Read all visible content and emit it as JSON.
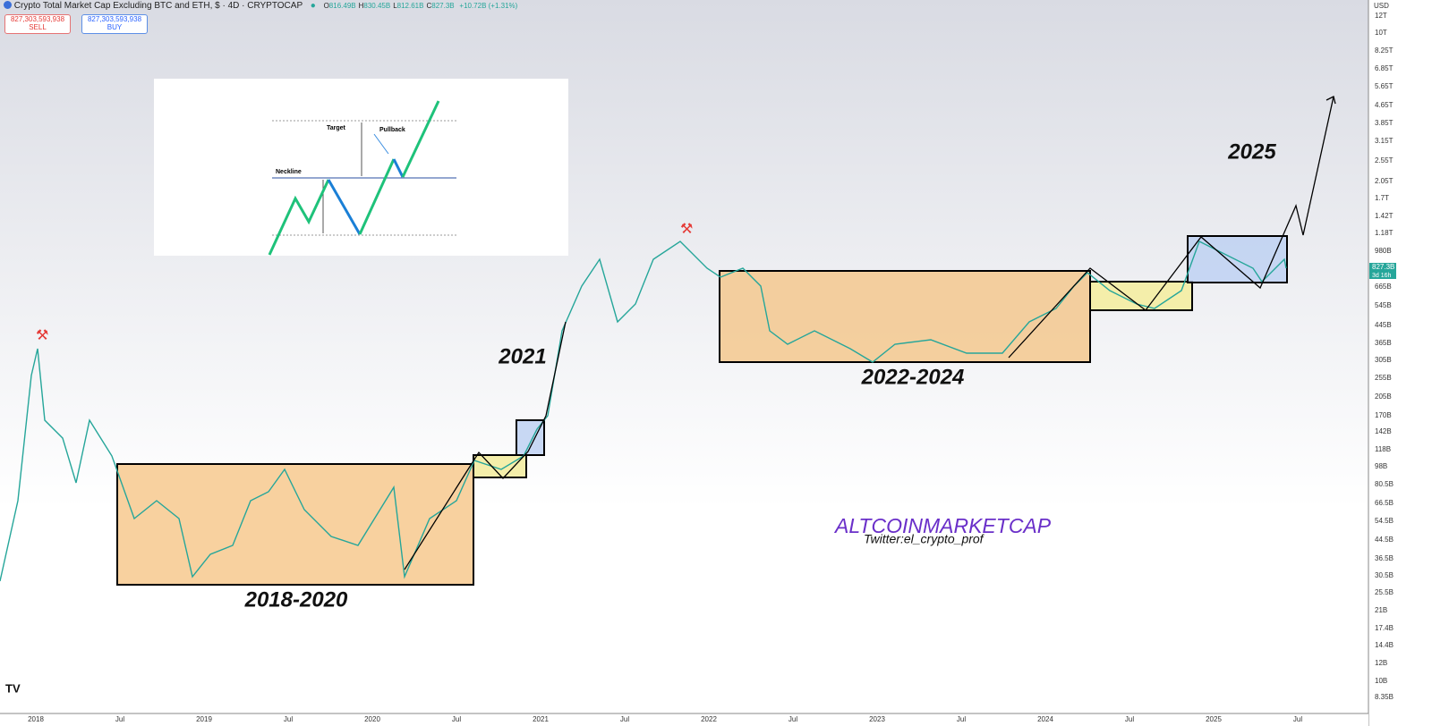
{
  "header": {
    "symbol": "Crypto Total Market Cap Excluding BTC and ETH, $ · 4D · CRYPTOCAP",
    "ohlc": [
      {
        "label": "O",
        "value": "816.49B"
      },
      {
        "label": "H",
        "value": "830.45B"
      },
      {
        "label": "L",
        "value": "812.61B"
      },
      {
        "label": "C",
        "value": "827.3B"
      }
    ],
    "change": "+10.72B (+1.31%)"
  },
  "trade": {
    "sell": {
      "price": "827,303,593,938",
      "label": "SELL"
    },
    "buy": {
      "price": "827,303,593,938",
      "label": "BUY"
    }
  },
  "price_axis": {
    "currency": "USD",
    "labels": [
      "12T",
      "10T",
      "8.25T",
      "6.85T",
      "5.65T",
      "4.65T",
      "3.85T",
      "3.15T",
      "2.55T",
      "2.05T",
      "1.7T",
      "1.42T",
      "1.18T",
      "980B",
      "665B",
      "545B",
      "445B",
      "365B",
      "305B",
      "255B",
      "205B",
      "170B",
      "142B",
      "118B",
      "98B",
      "80.5B",
      "66.5B",
      "54.5B",
      "44.5B",
      "36.5B",
      "30.5B",
      "25.5B",
      "21B",
      "17.4B",
      "14.4B",
      "12B",
      "10B",
      "8.35B"
    ],
    "current": {
      "price": "827.3B",
      "countdown": "3d 16h"
    }
  },
  "time_axis": {
    "labels": [
      "2018",
      "Jul",
      "2019",
      "Jul",
      "2020",
      "Jul",
      "2021",
      "Jul",
      "2022",
      "Jul",
      "2023",
      "Jul",
      "2024",
      "Jul",
      "2025",
      "Jul"
    ]
  },
  "annotations": {
    "period_1": "2018-2020",
    "period_2": "2021",
    "period_3": "2022-2024",
    "period_4": "2025",
    "watermark": "ALTCOINMARKETCAP",
    "twitter": "Twitter:el_crypto_prof"
  },
  "inset": {
    "target": "Target",
    "pullback": "Pullback",
    "neckline": "Neckline"
  }
}
